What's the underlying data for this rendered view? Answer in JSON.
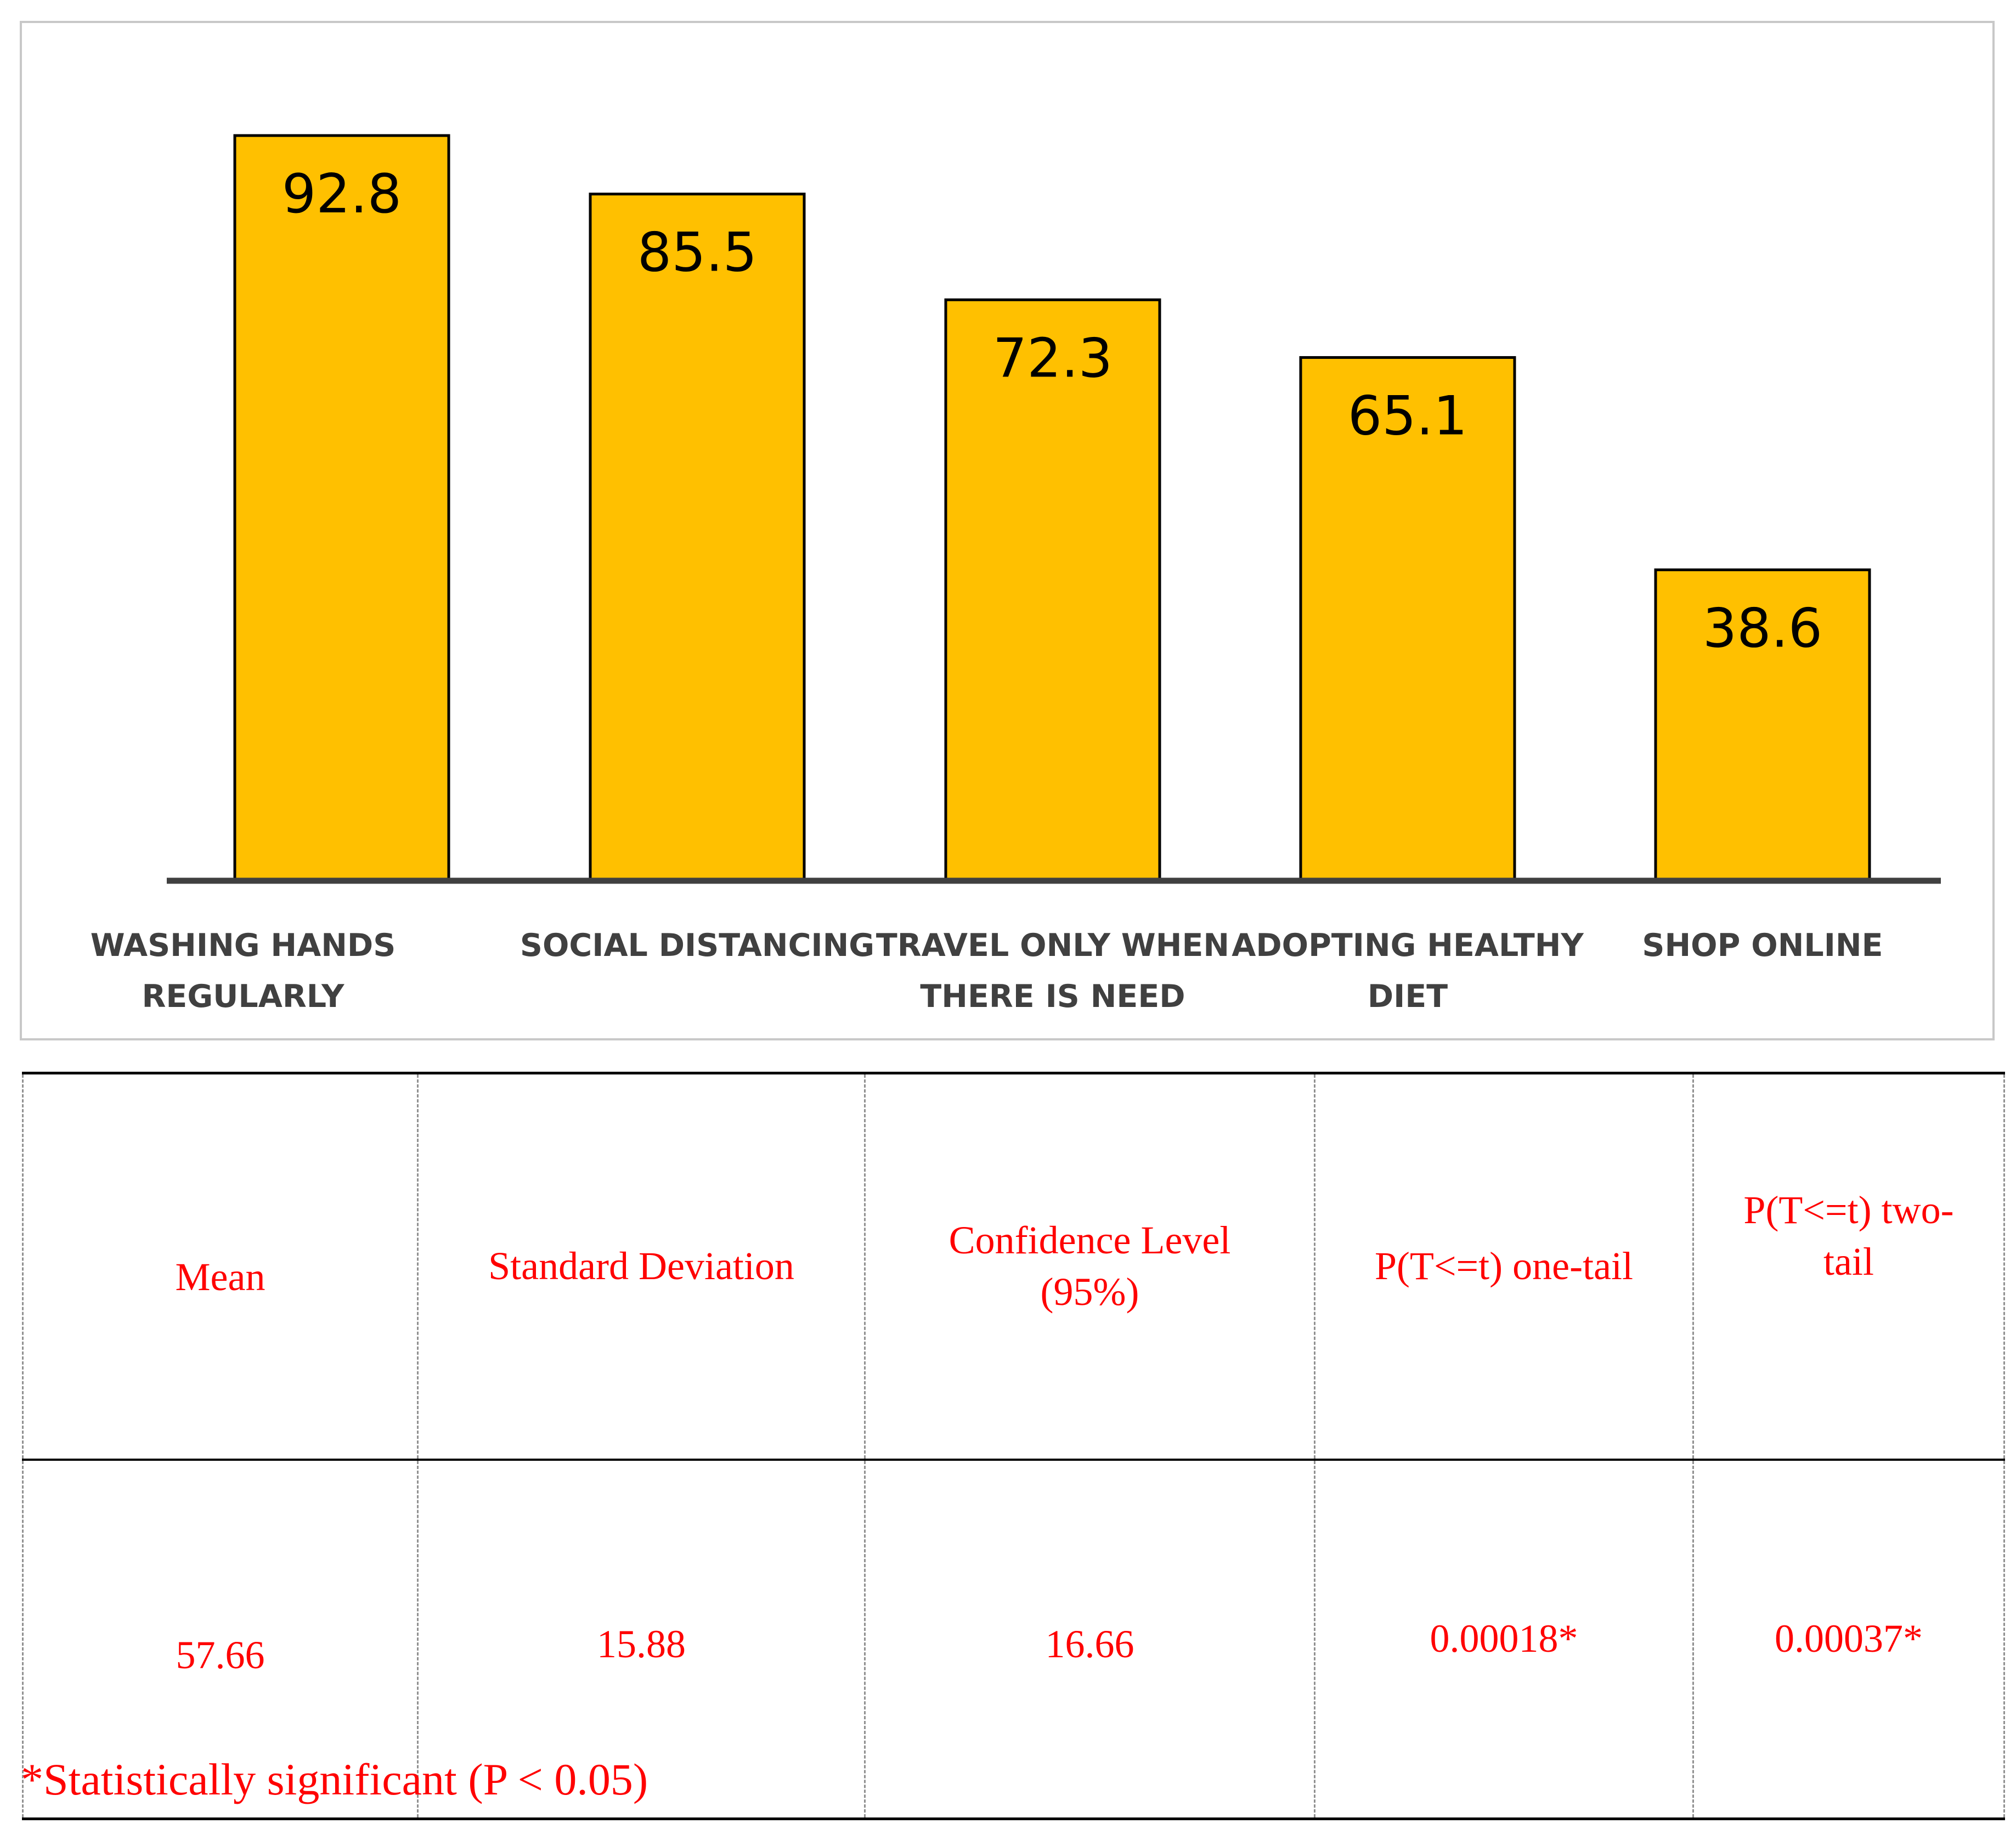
{
  "chart_data": {
    "type": "bar",
    "title": "",
    "xlabel": "",
    "ylabel": "",
    "categories": [
      [
        "WASHING HANDS",
        "REGULARLY"
      ],
      [
        "SOCIAL DISTANCING"
      ],
      [
        "TRAVEL ONLY WHEN",
        "THERE IS NEED"
      ],
      [
        "ADOPTING HEALTHY",
        "DIET"
      ],
      [
        "SHOP ONLINE"
      ]
    ],
    "values": [
      92.8,
      85.5,
      72.3,
      65.1,
      38.6
    ],
    "value_labels": [
      "92.8",
      "85.5",
      "72.3",
      "65.1",
      "38.6"
    ],
    "ylim": [
      0,
      100
    ],
    "grid": false,
    "legend": "none",
    "bar_color": "#FFC000"
  },
  "stats_table": {
    "headers": [
      "Mean",
      "Standard Deviation",
      "Confidence Level (95%)",
      "P(T<=t) one-tail",
      "P(T<=t) two-tail"
    ],
    "values": [
      "57.66",
      "15.88",
      "16.66",
      "0.00018*",
      "0.00037*"
    ]
  },
  "footnote": "*Statistically significant (P < 0.05)",
  "colors": {
    "table_text": "#ff0000",
    "bar_fill": "#FFC000"
  }
}
